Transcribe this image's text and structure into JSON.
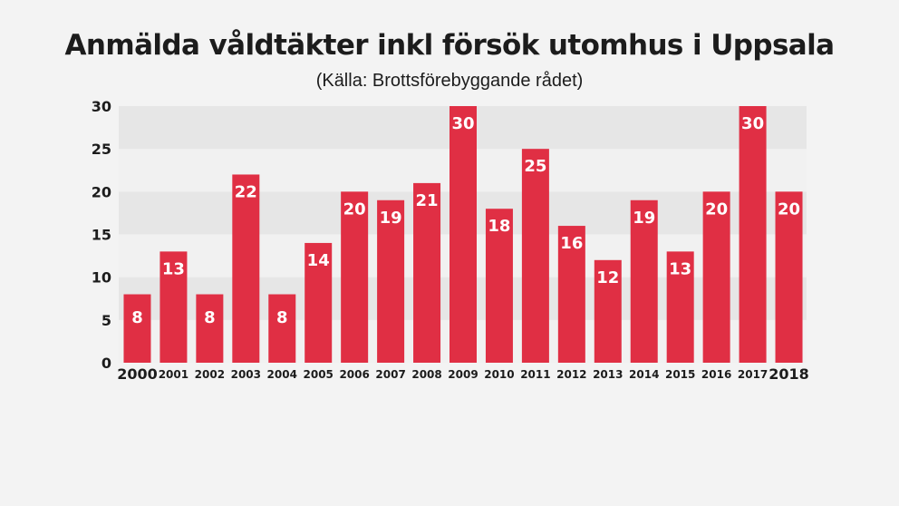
{
  "chart_data": {
    "type": "bar",
    "title": "Anmälda våldtäkter inkl försök utomhus i Uppsala",
    "subtitle": "(Källa: Brottsförebyggande rådet)",
    "xlabel": "",
    "ylabel": "",
    "categories": [
      "2000",
      "2001",
      "2002",
      "2003",
      "2004",
      "2005",
      "2006",
      "2007",
      "2008",
      "2009",
      "2010",
      "2011",
      "2012",
      "2013",
      "2014",
      "2015",
      "2016",
      "2017",
      "2018"
    ],
    "values": [
      8,
      13,
      8,
      22,
      8,
      14,
      20,
      19,
      21,
      30,
      18,
      25,
      16,
      12,
      19,
      13,
      20,
      30,
      20
    ],
    "ylim": [
      0,
      30
    ],
    "yticks": [
      0,
      5,
      10,
      15,
      20,
      25,
      30
    ],
    "emphasized_categories": [
      "2000",
      "2018"
    ],
    "grid": "alternating horizontal bands",
    "legend": "none",
    "colors": {
      "bar": "#e02f44",
      "bar_label": "#ffffff",
      "band_light": "#f1f1f1",
      "band_dark": "#e6e6e6",
      "text": "#1c1c1c",
      "background": "#f3f3f3"
    }
  }
}
